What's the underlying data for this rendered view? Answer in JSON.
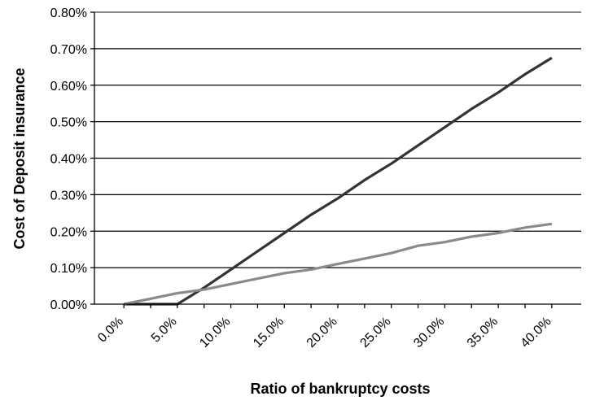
{
  "chart_data": {
    "type": "line",
    "title": "",
    "xlabel": "Ratio of bankruptcy costs",
    "ylabel": "Cost of Deposit insurance",
    "x_tick_labels": [
      "0.0%",
      "5.0%",
      "10.0%",
      "15.0%",
      "20.0%",
      "25.0%",
      "30.0%",
      "35.0%",
      "40.0%"
    ],
    "y_tick_labels": [
      "0.00%",
      "0.10%",
      "0.20%",
      "0.30%",
      "0.40%",
      "0.50%",
      "0.60%",
      "0.70%",
      "0.80%"
    ],
    "ylim": [
      0,
      0.8
    ],
    "x_categories": [
      "0.0%",
      "2.5%",
      "5.0%",
      "7.5%",
      "10.0%",
      "12.5%",
      "15.0%",
      "17.5%",
      "20.0%",
      "22.5%",
      "25.0%",
      "27.5%",
      "30.0%",
      "32.5%",
      "35.0%",
      "37.5%",
      "40.0%"
    ],
    "grid": true,
    "series": [
      {
        "color": "#333333",
        "values": [
          0.0,
          0.0,
          0.0,
          0.045,
          0.095,
          0.145,
          0.195,
          0.245,
          0.29,
          0.34,
          0.385,
          0.435,
          0.485,
          0.535,
          0.58,
          0.63,
          0.675
        ]
      },
      {
        "color": "#8a8a8a",
        "values": [
          0.0,
          0.015,
          0.03,
          0.04,
          0.055,
          0.07,
          0.085,
          0.095,
          0.11,
          0.125,
          0.14,
          0.16,
          0.17,
          0.185,
          0.195,
          0.21,
          0.22
        ]
      }
    ]
  }
}
